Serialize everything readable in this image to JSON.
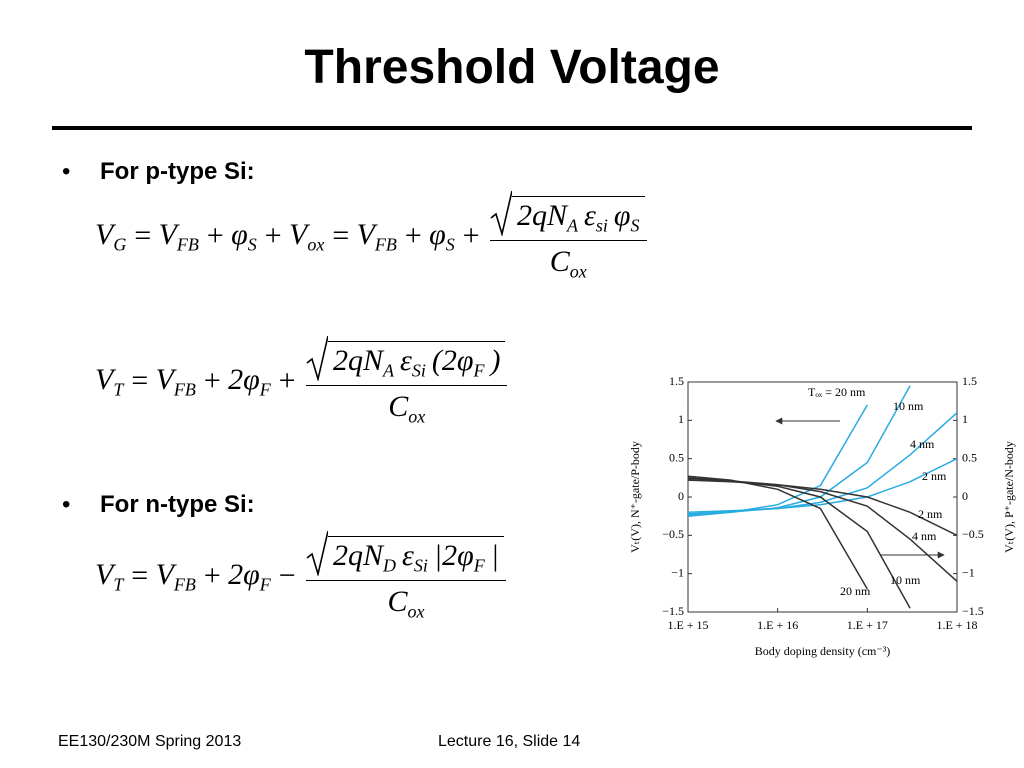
{
  "header": {
    "title": "Threshold Voltage"
  },
  "bullets": [
    "For p-type Si:",
    "For n-type Si:"
  ],
  "equations": [
    {
      "lhs": [
        {
          "b": "V",
          "s": "G"
        },
        {
          "b": "="
        },
        {
          "b": "V",
          "s": "FB"
        },
        {
          "b": "+"
        },
        {
          "b": "φ",
          "s": "S"
        },
        {
          "b": "+"
        },
        {
          "b": "V",
          "s": "ox"
        },
        {
          "b": "="
        },
        {
          "b": "V",
          "s": "FB"
        },
        {
          "b": "+"
        },
        {
          "b": "φ",
          "s": "S"
        },
        {
          "b": "+"
        }
      ],
      "numerator": [
        {
          "b": "2qN",
          "s": "A"
        },
        {
          "b": "ε",
          "s": "si"
        },
        {
          "b": "φ",
          "s": "S"
        }
      ],
      "denominator": [
        {
          "b": "C",
          "s": "ox"
        }
      ]
    },
    {
      "lhs": [
        {
          "b": "V",
          "s": "T"
        },
        {
          "b": "="
        },
        {
          "b": "V",
          "s": "FB"
        },
        {
          "b": "+"
        },
        {
          "b": "2φ",
          "s": "F"
        },
        {
          "b": "+"
        }
      ],
      "numerator": [
        {
          "b": "2qN",
          "s": "A"
        },
        {
          "b": "ε",
          "s": "Si"
        },
        {
          "b": "(2φ",
          "s": "F"
        },
        {
          "b": ")"
        }
      ],
      "denominator": [
        {
          "b": "C",
          "s": "ox"
        }
      ]
    },
    {
      "lhs": [
        {
          "b": "V",
          "s": "T"
        },
        {
          "b": "="
        },
        {
          "b": "V",
          "s": "FB"
        },
        {
          "b": "+"
        },
        {
          "b": "2φ",
          "s": "F"
        },
        {
          "b": "−"
        }
      ],
      "numerator": [
        {
          "b": "2qN",
          "s": "D"
        },
        {
          "b": "ε",
          "s": "Si"
        },
        {
          "b": "|2φ",
          "s": "F"
        },
        {
          "b": "|"
        }
      ],
      "denominator": [
        {
          "b": "C",
          "s": "ox"
        }
      ]
    }
  ],
  "footer": {
    "left": "EE130/230M Spring 2013",
    "right": "Lecture 16, Slide 14"
  },
  "chart_data": {
    "type": "line",
    "x_label": "Body doping density (cm⁻³)",
    "y_label": "Vₜ(V), N⁺-gate/P-body",
    "y2_label": "Vₜ(V), P⁺-gate/N-body",
    "annotation": "Tₒₓ = 20 nm",
    "log_x": true,
    "x": [
      1000000000000000.0,
      3000000000000000.0,
      1e+16,
      3e+16,
      1e+17,
      3e+17,
      1e+18
    ],
    "xlim": [
      1000000000000000.0,
      1e+18
    ],
    "xticks": [
      {
        "value": 1000000000000000.0,
        "label": "1.E + 15"
      },
      {
        "value": 1e+16,
        "label": "1.E + 16"
      },
      {
        "value": 1e+17,
        "label": "1.E + 17"
      },
      {
        "value": 1e+18,
        "label": "1.E + 18"
      }
    ],
    "ylim": [
      -1.5,
      1.5
    ],
    "yticks": [
      1.5,
      1,
      0.5,
      0,
      {
        "value": -0.5,
        "label": "−0.5"
      },
      {
        "value": -1,
        "label": "−1"
      },
      {
        "value": -1.5,
        "label": "−1.5"
      }
    ],
    "y2lim": [
      -1.5,
      1.5
    ],
    "y2ticks": [
      1.5,
      1,
      0.5,
      0,
      {
        "value": -0.5,
        "label": "−0.5"
      },
      {
        "value": -1,
        "label": "−1"
      },
      {
        "value": -1.5,
        "label": "−1.5"
      }
    ],
    "series": [
      {
        "color": "#29abe2",
        "values": [
          -0.25,
          -0.2,
          -0.1,
          0.15,
          1.2,
          null,
          null
        ]
      },
      {
        "name": "10 nm",
        "color": "#29abe2",
        "values": [
          -0.24,
          -0.2,
          -0.14,
          0.0,
          0.45,
          1.45,
          null
        ]
      },
      {
        "name": "4 nm",
        "color": "#29abe2",
        "values": [
          -0.22,
          -0.19,
          -0.15,
          -0.07,
          0.12,
          0.55,
          1.1
        ]
      },
      {
        "name": "2 nm",
        "color": "#29abe2",
        "values": [
          -0.2,
          -0.18,
          -0.15,
          -0.1,
          0.0,
          0.2,
          0.5
        ]
      },
      {
        "name": "2 nm",
        "color": "#333333",
        "values": [
          0.22,
          0.2,
          0.16,
          0.1,
          0.0,
          -0.2,
          -0.5
        ]
      },
      {
        "name": "4 nm",
        "color": "#333333",
        "values": [
          0.24,
          0.21,
          0.16,
          0.07,
          -0.12,
          -0.55,
          -1.1
        ]
      },
      {
        "name": "10 nm",
        "color": "#333333",
        "values": [
          0.25,
          0.21,
          0.14,
          0.0,
          -0.45,
          -1.45,
          null
        ]
      },
      {
        "name": "20 nm",
        "color": "#333333",
        "values": [
          0.27,
          0.22,
          0.1,
          -0.15,
          -1.2,
          null,
          null
        ]
      }
    ]
  }
}
